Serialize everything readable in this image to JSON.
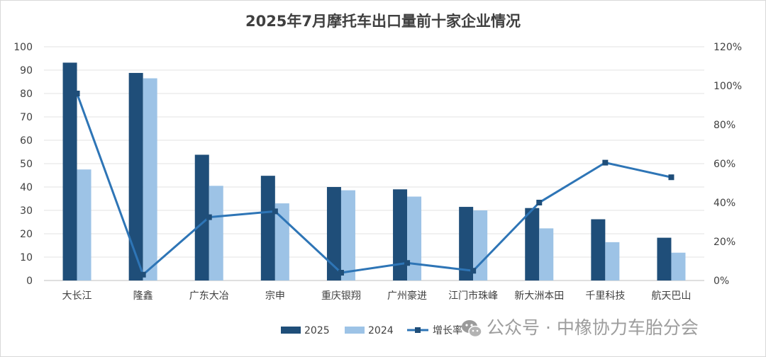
{
  "chart_data": {
    "type": "bar",
    "title": "2025年7月摩托车出口量前十家企业情况",
    "categories": [
      "大长江",
      "隆鑫",
      "广东大冶",
      "宗申",
      "重庆银翔",
      "广州豪进",
      "江门市珠峰",
      "新大洲本田",
      "千里科技",
      "航天巴山"
    ],
    "series": [
      {
        "name": "2025",
        "type": "bar",
        "axis": "left",
        "color": "#1f4e79",
        "values": [
          93.2,
          88.8,
          53.8,
          44.8,
          40.0,
          39.0,
          31.5,
          31.0,
          26.2,
          18.3
        ]
      },
      {
        "name": "2024",
        "type": "bar",
        "axis": "left",
        "color": "#9dc3e6",
        "values": [
          47.5,
          86.5,
          40.5,
          33.0,
          38.6,
          35.9,
          30.0,
          22.3,
          16.4,
          11.9
        ]
      },
      {
        "name": "增长率",
        "type": "line",
        "axis": "right",
        "color": "#2e75b6",
        "values": [
          0.96,
          0.03,
          0.325,
          0.355,
          0.04,
          0.09,
          0.05,
          0.4,
          0.605,
          0.53
        ]
      }
    ],
    "y_left": {
      "min": 0,
      "max": 100,
      "ticks": [
        0,
        10,
        20,
        30,
        40,
        50,
        60,
        70,
        80,
        90,
        100
      ],
      "tick_labels": [
        "0",
        "10",
        "20",
        "30",
        "40",
        "50",
        "60",
        "70",
        "80",
        "90",
        "100"
      ]
    },
    "y_right": {
      "min": 0,
      "max": 1.2,
      "ticks": [
        0,
        0.2,
        0.4,
        0.6,
        0.8,
        1.0,
        1.2
      ],
      "tick_labels": [
        "0%",
        "20%",
        "40%",
        "60%",
        "80%",
        "100%",
        "120%"
      ]
    },
    "grid": true,
    "legend_position": "bottom"
  },
  "watermark": {
    "text": "公众号 · 中橡协力车胎分会",
    "icon": "wechat-icon"
  }
}
